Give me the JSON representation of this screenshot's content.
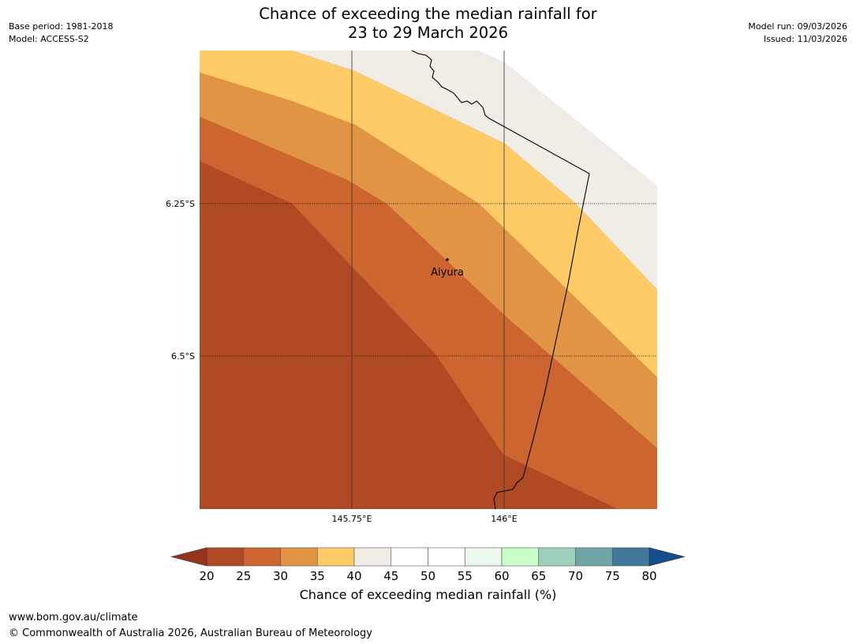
{
  "title": {
    "line1": "Chance of exceeding the median rainfall for",
    "line2": "23 to 29 March 2026"
  },
  "meta": {
    "base_period": "Base period: 1981-2018",
    "model": "Model: ACCESS-S2",
    "model_run": "Model run: 09/03/2026",
    "issued": "Issued: 11/03/2026"
  },
  "map": {
    "lat_labels": [
      "6.25°S",
      "6.5°S"
    ],
    "lon_labels": [
      "145.75°E",
      "146°E"
    ],
    "place": "Aiyura",
    "colors": {
      "c20_25": "#b04a25",
      "c25_30": "#cc6530",
      "c30_35": "#e09444",
      "c35_40": "#fecb66",
      "c40_45": "#f0ece6",
      "below20": "#96331d"
    }
  },
  "colorbar": {
    "ticks": [
      "20",
      "25",
      "30",
      "35",
      "40",
      "45",
      "50",
      "55",
      "60",
      "65",
      "70",
      "75",
      "80"
    ],
    "colors": [
      "#b04a25",
      "#cc6530",
      "#e09444",
      "#fecb66",
      "#f0ece6",
      "#ffffff",
      "#ffffff",
      "#ebf7ea",
      "#c8fdc8",
      "#9dcfbb",
      "#6fa5a7",
      "#3f7899"
    ],
    "under_color": "#96331d",
    "over_color": "#144c8c",
    "label": "Chance of exceeding median rainfall (%)"
  },
  "footer": {
    "url": "www.bom.gov.au/climate",
    "copyright": "© Commonwealth of Australia 2026, Australian Bureau of Meteorology"
  }
}
